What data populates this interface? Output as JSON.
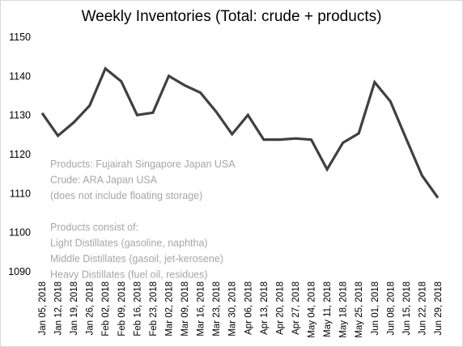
{
  "chart_data": {
    "type": "line",
    "title": "Weekly Inventories (Total: crude + products)",
    "xlabel": "",
    "ylabel": "",
    "ylim": [
      1090,
      1150
    ],
    "yticks": [
      1090,
      1100,
      1110,
      1120,
      1130,
      1140,
      1150
    ],
    "grid": false,
    "line_color": "#404040",
    "categories": [
      "Jan 05, 2018",
      "Jan 12, 2018",
      "Jan 19, 2018",
      "Jan 26, 2018",
      "Feb 02, 2018",
      "Feb 09, 2018",
      "Feb 16, 2018",
      "Feb 23, 2018",
      "Mar 02, 2018",
      "Mar 09, 2018",
      "Mar 16, 2018",
      "Mar 23, 2018",
      "Mar 30, 2018",
      "Apr 06, 2018",
      "Apr 13, 2018",
      "Apr 20, 2018",
      "Apr 27, 2018",
      "May 04, 2018",
      "May 11, 2018",
      "May 18, 2018",
      "May 25, 2018",
      "Jun 01, 2018",
      "Jun 08, 2018",
      "Jun 15, 2018",
      "Jun 22, 2018",
      "Jun 29, 2018"
    ],
    "values": [
      1130.6,
      1124.8,
      1128.2,
      1132.5,
      1142.0,
      1138.7,
      1130.1,
      1130.7,
      1140.1,
      1137.7,
      1135.8,
      1130.9,
      1125.2,
      1130.1,
      1123.8,
      1123.8,
      1124.1,
      1123.8,
      1116.2,
      1123.0,
      1125.4,
      1138.5,
      1133.6,
      1124.0,
      1114.6,
      1108.9
    ],
    "annotations": [
      "Products: Fujairah Singapore Japan USA",
      "Crude: ARA  Japan USA",
      "(does not include floating storage)",
      "",
      "Products consist of:",
      "Light Distillates (gasoline, naphtha)",
      "Middle Distillates (gasoil, jet-kerosene)",
      "Heavy Distillates (fuel oil, residues)"
    ]
  }
}
